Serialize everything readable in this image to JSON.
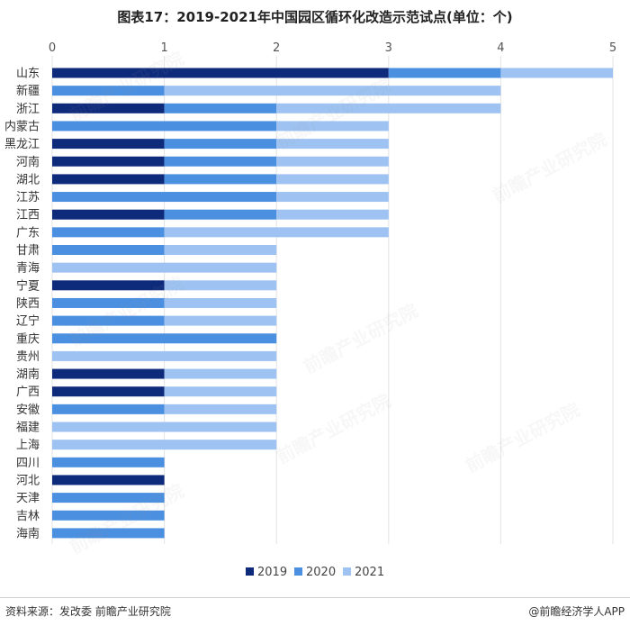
{
  "title": "图表17：2019-2021年中国园区循环化改造示范试点(单位：个)",
  "source": "资料来源：发改委 前瞻产业研究院",
  "brand": "@前瞻经济学人APP",
  "watermark": "前瞻产业研究院",
  "chart_data": {
    "type": "bar",
    "orientation": "horizontal",
    "stacked": true,
    "title": "图表17：2019-2021年中国园区循环化改造示范试点(单位：个)",
    "categories": [
      "山东",
      "新疆",
      "浙江",
      "内蒙古",
      "黑龙江",
      "河南",
      "湖北",
      "江苏",
      "江西",
      "广东",
      "甘肃",
      "青海",
      "宁夏",
      "陕西",
      "辽宁",
      "重庆",
      "贵州",
      "湖南",
      "广西",
      "安徽",
      "福建",
      "上海",
      "四川",
      "河北",
      "天津",
      "吉林",
      "海南"
    ],
    "series": [
      {
        "name": "2019",
        "color": "#0e2a7b",
        "values": [
          3,
          0,
          1,
          0,
          1,
          1,
          1,
          0,
          1,
          0,
          0,
          0,
          1,
          0,
          0,
          0,
          0,
          1,
          1,
          0,
          0,
          0,
          0,
          1,
          0,
          0,
          0
        ]
      },
      {
        "name": "2020",
        "color": "#4a8fe0",
        "values": [
          1,
          1,
          1,
          2,
          1,
          1,
          1,
          2,
          1,
          1,
          1,
          0,
          0,
          1,
          1,
          2,
          0,
          0,
          0,
          1,
          0,
          0,
          1,
          0,
          1,
          1,
          1
        ]
      },
      {
        "name": "2021",
        "color": "#9ec3f2",
        "values": [
          1,
          3,
          2,
          1,
          1,
          1,
          1,
          1,
          1,
          2,
          1,
          2,
          1,
          1,
          1,
          0,
          2,
          1,
          1,
          1,
          2,
          2,
          0,
          0,
          0,
          0,
          0
        ]
      }
    ],
    "xlim": [
      0,
      5
    ],
    "xticks": [
      "0",
      "1",
      "2",
      "3",
      "4",
      "5"
    ],
    "axis_position": "top",
    "grid": true,
    "legend_position": "bottom"
  }
}
